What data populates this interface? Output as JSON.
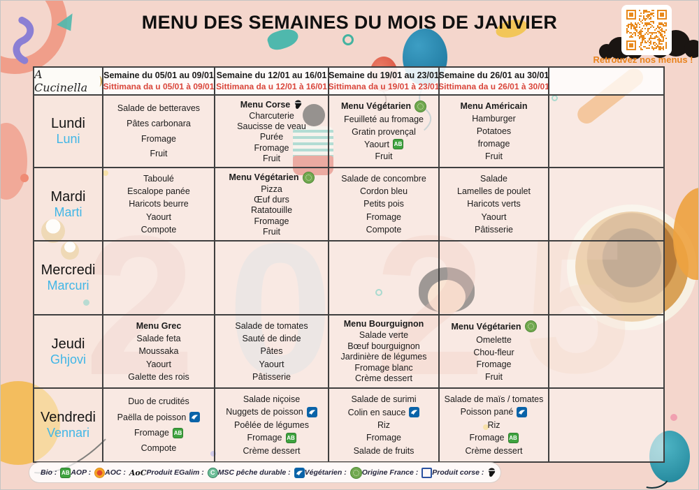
{
  "title": "MENU DES SEMAINES DU MOIS DE JANVIER",
  "qr_caption": "Retrouvez nos menus !",
  "logo": "A Cucinella",
  "watermark_digits": [
    "2",
    "0",
    "2",
    "5"
  ],
  "colors": {
    "accent_orange": "#e8891c",
    "sittimana_red": "#d9453a",
    "corsican_blue": "#41b6e6",
    "bio_green": "#3fa33f",
    "msc_blue": "#0a63a8",
    "veg_green": "#71a84f"
  },
  "menu": {
    "week_headers": [
      {
        "fr": "Semaine du 05/01 au 09/01",
        "co": "Sittimana da u 05/01 à 09/01"
      },
      {
        "fr": "Semaine du 12/01 au 16/01",
        "co": "Sittimana da u 12/01 à 16/01"
      },
      {
        "fr": "Semaine du 19/01 au 23/01",
        "co": "Sittimana da u 19/01 à 23/01"
      },
      {
        "fr": "Semaine du 26/01 au 30/01",
        "co": "Sittimana da u 26/01 à 30/01"
      },
      null
    ],
    "rows": [
      {
        "day": {
          "fr": "Lundi",
          "co": "Luni"
        },
        "cells": [
          {
            "lines": [
              {
                "t": "Salade de betteraves"
              },
              {
                "t": "Pâtes carbonara"
              },
              {
                "t": "Fromage"
              },
              {
                "t": "Fruit"
              }
            ]
          },
          {
            "lines": [
              {
                "t": "Menu Corse",
                "b": true,
                "ic": "corse"
              },
              {
                "t": "Charcuterie"
              },
              {
                "t": "Saucisse de veau"
              },
              {
                "t": "Purée"
              },
              {
                "t": "Fromage"
              },
              {
                "t": "Fruit"
              }
            ]
          },
          {
            "lines": [
              {
                "t": "Menu Végétarien",
                "b": true,
                "ic": "veg"
              },
              {
                "t": "Feuilleté au fromage"
              },
              {
                "t": "Gratin provençal"
              },
              {
                "t": "Yaourt",
                "ic": "bio"
              },
              {
                "t": "Fruit"
              }
            ]
          },
          {
            "lines": [
              {
                "t": "Menu Américain",
                "b": true
              },
              {
                "t": "Hamburger"
              },
              {
                "t": "Potatoes"
              },
              {
                "t": "fromage"
              },
              {
                "t": "Fruit"
              }
            ]
          },
          {
            "lines": []
          }
        ]
      },
      {
        "day": {
          "fr": "Mardi",
          "co": "Marti"
        },
        "cells": [
          {
            "lines": [
              {
                "t": "Taboulé"
              },
              {
                "t": "Escalope panée"
              },
              {
                "t": "Haricots beurre"
              },
              {
                "t": "Yaourt"
              },
              {
                "t": "Compote"
              }
            ]
          },
          {
            "lines": [
              {
                "t": "Menu Végétarien",
                "b": true,
                "ic": "veg"
              },
              {
                "t": "Pizza"
              },
              {
                "t": "Œuf durs"
              },
              {
                "t": "Ratatouille"
              },
              {
                "t": "Fromage"
              },
              {
                "t": "Fruit"
              }
            ]
          },
          {
            "lines": [
              {
                "t": "Salade de concombre"
              },
              {
                "t": "Cordon bleu"
              },
              {
                "t": "Petits pois"
              },
              {
                "t": "Fromage"
              },
              {
                "t": "Compote"
              }
            ]
          },
          {
            "lines": [
              {
                "t": "Salade"
              },
              {
                "t": "Lamelles de poulet"
              },
              {
                "t": "Haricots verts"
              },
              {
                "t": "Yaourt"
              },
              {
                "t": "Pâtisserie"
              }
            ]
          },
          {
            "lines": []
          }
        ]
      },
      {
        "day": {
          "fr": "Mercredi",
          "co": "Marcuri"
        },
        "cells": [
          {
            "lines": []
          },
          {
            "lines": []
          },
          {
            "lines": []
          },
          {
            "lines": []
          },
          {
            "lines": []
          }
        ]
      },
      {
        "day": {
          "fr": "Jeudi",
          "co": "Ghjovi"
        },
        "cells": [
          {
            "lines": [
              {
                "t": "Menu Grec",
                "b": true
              },
              {
                "t": "Salade feta"
              },
              {
                "t": "Moussaka"
              },
              {
                "t": "Yaourt"
              },
              {
                "t": "Galette des rois"
              }
            ]
          },
          {
            "lines": [
              {
                "t": "Salade de tomates"
              },
              {
                "t": "Sauté de dinde"
              },
              {
                "t": "Pâtes"
              },
              {
                "t": "Yaourt"
              },
              {
                "t": "Pâtisserie"
              }
            ]
          },
          {
            "lines": [
              {
                "t": "Menu Bourguignon",
                "b": true
              },
              {
                "t": "Salade verte"
              },
              {
                "t": "Bœuf bourguignon"
              },
              {
                "t": "Jardinière de légumes"
              },
              {
                "t": "Fromage blanc"
              },
              {
                "t": "Crème dessert"
              }
            ]
          },
          {
            "lines": [
              {
                "t": "Menu Végétarien",
                "b": true,
                "ic": "veg"
              },
              {
                "t": "Omelette"
              },
              {
                "t": "Chou-fleur"
              },
              {
                "t": "Fromage"
              },
              {
                "t": "Fruit"
              }
            ]
          },
          {
            "lines": []
          }
        ]
      },
      {
        "day": {
          "fr": "Vendredi",
          "co": "Vennari"
        },
        "cells": [
          {
            "lines": [
              {
                "t": "Duo de crudités"
              },
              {
                "t": "Paëlla de poisson",
                "ic": "msc"
              },
              {
                "t": "Fromage",
                "ic": "bio"
              },
              {
                "t": "Compote"
              }
            ]
          },
          {
            "lines": [
              {
                "t": "Salade niçoise"
              },
              {
                "t": "Nuggets de poisson",
                "ic": "msc"
              },
              {
                "t": "Poêlée de légumes"
              },
              {
                "t": "Fromage",
                "ic": "bio"
              },
              {
                "t": "Crème dessert"
              }
            ]
          },
          {
            "lines": [
              {
                "t": "Salade de surimi"
              },
              {
                "t": "Colin en sauce",
                "ic": "msc"
              },
              {
                "t": "Riz"
              },
              {
                "t": "Fromage"
              },
              {
                "t": "Salade de fruits"
              }
            ]
          },
          {
            "lines": [
              {
                "t": "Salade de maïs / tomates"
              },
              {
                "t": "Poisson pané",
                "ic": "msc"
              },
              {
                "t": "Riz"
              },
              {
                "t": "Fromage",
                "ic": "bio"
              },
              {
                "t": "Crème dessert"
              }
            ]
          },
          {
            "lines": []
          }
        ]
      }
    ]
  },
  "legend": [
    {
      "label": "Bio :",
      "icon": "bio"
    },
    {
      "label": "AOP :",
      "icon": "aop"
    },
    {
      "label": "AOC :",
      "icon": "aoc"
    },
    {
      "label": "Produit EGalim :",
      "icon": "egalim"
    },
    {
      "label": "MSC pêche durable :",
      "icon": "msc"
    },
    {
      "label": "Végétarien :",
      "icon": "veg"
    },
    {
      "label": "Origine France :",
      "icon": "france"
    },
    {
      "label": "Produit corse :",
      "icon": "corse"
    }
  ]
}
